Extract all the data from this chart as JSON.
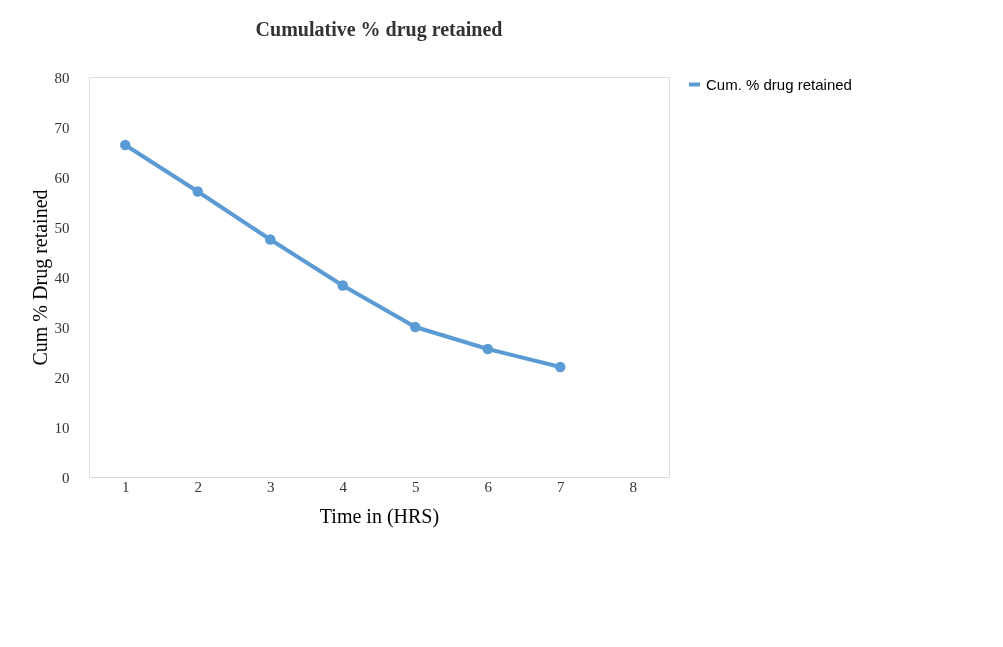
{
  "chart_data": {
    "type": "line",
    "title": "Cumulative % drug retained",
    "xlabel": "Time in (HRS)",
    "ylabel": "Cum % Drug retained",
    "categories": [
      "1",
      "2",
      "3",
      "4",
      "5",
      "6",
      "7",
      "8"
    ],
    "series": [
      {
        "name": "Cum. % drug retained",
        "color": "#5b9bd5",
        "values": [
          66.4,
          57.1,
          47.5,
          38.3,
          30,
          25.6,
          22,
          null
        ]
      }
    ],
    "ylim": [
      0,
      80
    ],
    "yticks": [
      0,
      10,
      20,
      30,
      40,
      50,
      60,
      70,
      80
    ],
    "grid": false,
    "legend": "right",
    "marker": "circle",
    "line_style": "solid"
  }
}
